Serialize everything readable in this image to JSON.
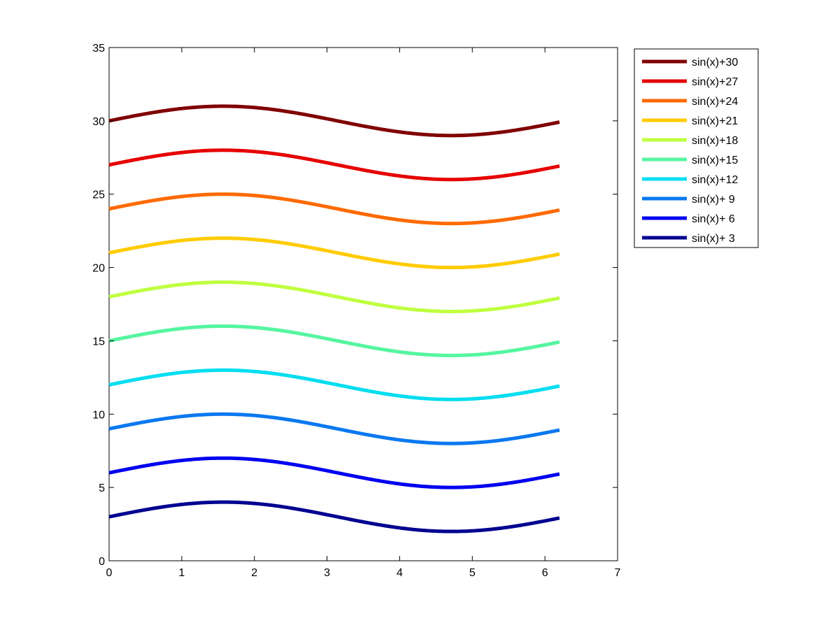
{
  "chart_data": {
    "type": "line",
    "title": "",
    "xlabel": "",
    "ylabel": "",
    "xlim": [
      0,
      7
    ],
    "ylim": [
      0,
      35
    ],
    "xticks": [
      0,
      1,
      2,
      3,
      4,
      5,
      6,
      7
    ],
    "yticks": [
      0,
      5,
      10,
      15,
      20,
      25,
      30,
      35
    ],
    "x_range": [
      0,
      6.2
    ],
    "grid": false,
    "legend_position": "outside-top-right",
    "series": [
      {
        "name": "sin(x)+30",
        "offset": 30,
        "color": "#800000"
      },
      {
        "name": "sin(x)+27",
        "offset": 27,
        "color": "#e60000"
      },
      {
        "name": "sin(x)+24",
        "offset": 24,
        "color": "#ff6a00"
      },
      {
        "name": "sin(x)+21",
        "offset": 21,
        "color": "#ffcc00"
      },
      {
        "name": "sin(x)+18",
        "offset": 18,
        "color": "#bfff40"
      },
      {
        "name": "sin(x)+15",
        "offset": 15,
        "color": "#55f5a0"
      },
      {
        "name": "sin(x)+12",
        "offset": 12,
        "color": "#00ddf0"
      },
      {
        "name": "sin(x)+ 9",
        "offset": 9,
        "color": "#0a78f0"
      },
      {
        "name": "sin(x)+ 6",
        "offset": 6,
        "color": "#0000f0"
      },
      {
        "name": "sin(x)+ 3",
        "offset": 3,
        "color": "#000090"
      }
    ]
  }
}
